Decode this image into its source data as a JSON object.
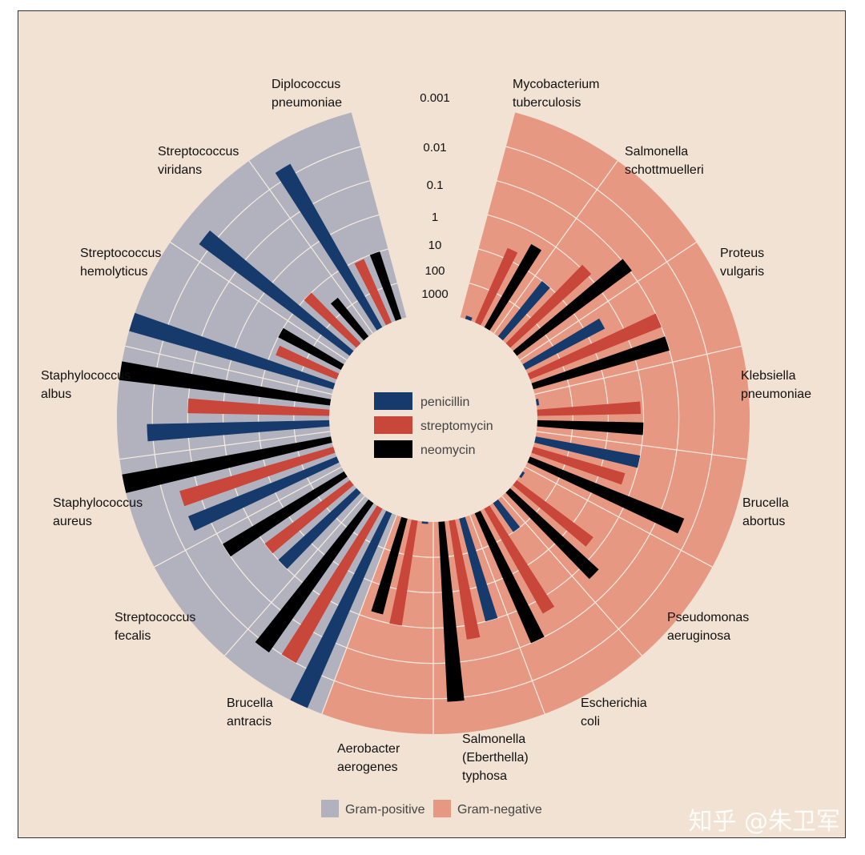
{
  "chart_data": {
    "type": "radial-bar",
    "scale": "log",
    "tick_labels": [
      "0.001",
      "0.01",
      "0.1",
      "1",
      "10",
      "100",
      "1000"
    ],
    "tick_values": [
      0.001,
      0.01,
      0.1,
      1,
      10,
      100,
      1000
    ],
    "antibiotics": [
      {
        "name": "penicillin",
        "color": "#163a6b"
      },
      {
        "name": "streptomycin",
        "color": "#c8463a"
      },
      {
        "name": "neomycin",
        "color": "#000000"
      }
    ],
    "gram_groups": [
      {
        "name": "Gram-positive",
        "color": "#b1b2bd"
      },
      {
        "name": "Gram-negative",
        "color": "#e79883"
      }
    ],
    "bacteria": [
      {
        "name": "Mycobacterium tuberculosis",
        "lines": [
          "Mycobacterium",
          "tuberculosis"
        ],
        "gram": "negative",
        "penicillin": 800,
        "streptomycin": 5,
        "neomycin": 2
      },
      {
        "name": "Salmonella schottmuelleri",
        "lines": [
          "Salmonella",
          "schottmuelleri"
        ],
        "gram": "negative",
        "penicillin": 10,
        "streptomycin": 0.8,
        "neomycin": 0.09
      },
      {
        "name": "Proteus vulgaris",
        "lines": [
          "Proteus",
          "vulgaris"
        ],
        "gram": "negative",
        "penicillin": 3,
        "streptomycin": 0.1,
        "neomycin": 0.1
      },
      {
        "name": "Klebsiella pneumoniae",
        "lines": [
          "Klebsiella",
          "pneumoniae"
        ],
        "gram": "negative",
        "penicillin": 850,
        "streptomycin": 1.2,
        "neomycin": 1
      },
      {
        "name": "Brucella abortus",
        "lines": [
          "Brucella",
          "abortus"
        ],
        "gram": "negative",
        "penicillin": 1,
        "streptomycin": 2,
        "neomycin": 0.02
      },
      {
        "name": "Pseudomonas aeruginosa",
        "lines": [
          "Pseudomonas",
          "aeruginosa"
        ],
        "gram": "negative",
        "penicillin": 850,
        "streptomycin": 2,
        "neomycin": 0.4
      },
      {
        "name": "Escherichia coli",
        "lines": [
          "Escherichia",
          "coli"
        ],
        "gram": "negative",
        "penicillin": 100,
        "streptomycin": 0.4,
        "neomycin": 0.1
      },
      {
        "name": "Salmonella (Eberthella) typhosa",
        "lines": [
          "Salmonella",
          "(Eberthella)",
          "typhosa"
        ],
        "gram": "negative",
        "penicillin": 1,
        "streptomycin": 0.4,
        "neomycin": 0.008
      },
      {
        "name": "Aerobacter aerogenes",
        "lines": [
          "Aerobacter",
          "aerogenes"
        ],
        "gram": "negative",
        "penicillin": 870,
        "streptomycin": 1,
        "neomycin": 1.6
      },
      {
        "name": "Brucella antracis",
        "lines": [
          "Brucella",
          "antracis"
        ],
        "gram": "positive",
        "penicillin": 0.001,
        "streptomycin": 0.01,
        "neomycin": 0.007
      },
      {
        "name": "Streptococcus fecalis",
        "lines": [
          "Streptococcus",
          "fecalis"
        ],
        "gram": "positive",
        "penicillin": 1,
        "streptomycin": 1,
        "neomycin": 0.1
      },
      {
        "name": "Staphylococcus aureus",
        "lines": [
          "Staphylococcus",
          "aureus"
        ],
        "gram": "positive",
        "penicillin": 0.03,
        "streptomycin": 0.03,
        "neomycin": 0.001
      },
      {
        "name": "Staphylococcus albus",
        "lines": [
          "Staphylococcus",
          "albus"
        ],
        "gram": "positive",
        "penicillin": 0.007,
        "streptomycin": 0.1,
        "neomycin": 0.001
      },
      {
        "name": "Streptococcus hemolyticus",
        "lines": [
          "Streptococcus",
          "hemolyticus"
        ],
        "gram": "positive",
        "penicillin": 0.001,
        "streptomycin": 14,
        "neomycin": 10
      },
      {
        "name": "Streptococcus viridans",
        "lines": [
          "Streptococcus",
          "viridans"
        ],
        "gram": "positive",
        "penicillin": 0.005,
        "streptomycin": 10,
        "neomycin": 40
      },
      {
        "name": "Diplococcus pneumoniae",
        "lines": [
          "Diplococcus",
          "pneumoniae"
        ],
        "gram": "positive",
        "penicillin": 0.005,
        "streptomycin": 11,
        "neomycin": 10
      }
    ]
  },
  "watermark": "知乎 @朱卫军"
}
